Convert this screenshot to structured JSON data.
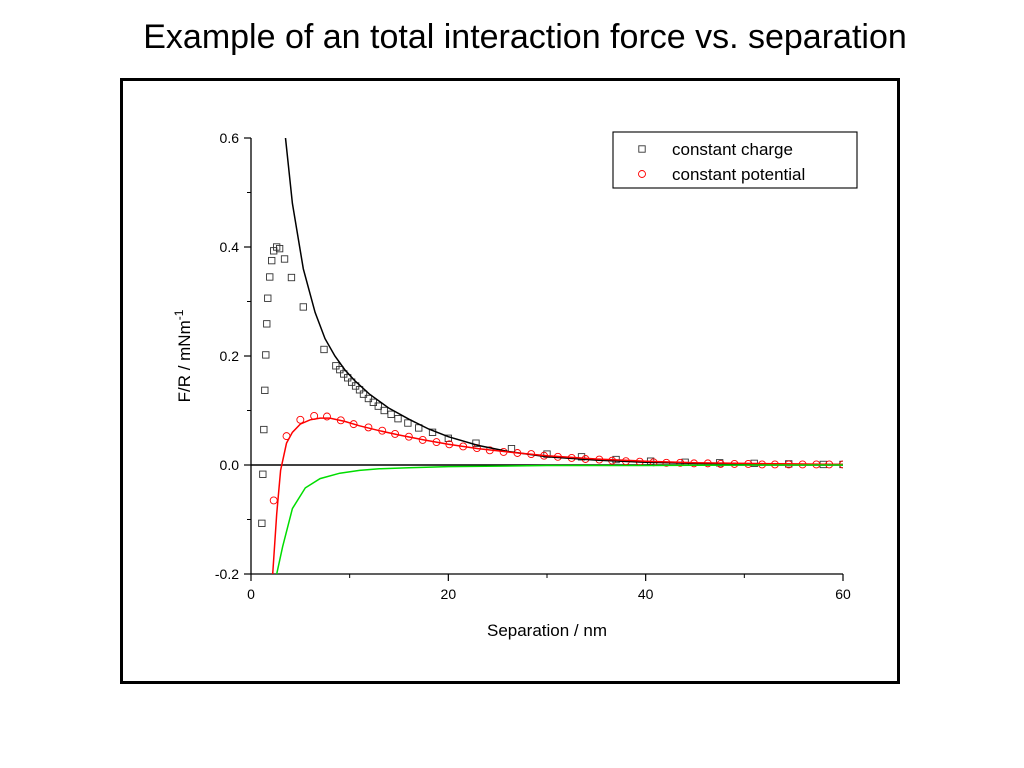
{
  "chart_data": {
    "type": "scatter",
    "title": "Example of an total interaction force vs. separation",
    "xlabel": "Separation / nm",
    "ylabel": "F/R / mNm-1",
    "ylabel_main": "F/R / mNm",
    "ylabel_sup": "-1",
    "xlim": [
      0,
      60
    ],
    "ylim": [
      -0.2,
      0.6
    ],
    "x_ticks": [
      0,
      20,
      40,
      60
    ],
    "x_tick_labels": [
      "0",
      "20",
      "40",
      "60"
    ],
    "y_ticks": [
      -0.2,
      0.0,
      0.2,
      0.4,
      0.6
    ],
    "y_tick_labels": [
      "-0.2",
      "0.0",
      "0.2",
      "0.4",
      "0.6"
    ],
    "grid": false,
    "legend_position": "top-right",
    "zero_line": true,
    "series": [
      {
        "name": "constant charge",
        "kind": "markers",
        "marker": "square",
        "color": "#333333",
        "x": [
          1.1,
          1.2,
          1.3,
          1.4,
          1.5,
          1.6,
          1.7,
          1.9,
          2.1,
          2.3,
          2.6,
          2.9,
          3.4,
          4.1,
          5.3,
          7.4,
          8.6,
          9.0,
          9.4,
          9.8,
          10.2,
          10.6,
          11.0,
          11.4,
          11.9,
          12.4,
          12.9,
          13.5,
          14.2,
          14.9,
          15.9,
          17.0,
          18.4,
          20.0,
          22.8,
          26.4,
          30.0,
          33.5,
          37.0,
          40.5,
          44.0,
          47.5,
          51.0,
          54.5,
          58.0,
          60.0
        ],
        "y": [
          -0.107,
          -0.017,
          0.065,
          0.137,
          0.202,
          0.259,
          0.306,
          0.345,
          0.375,
          0.393,
          0.4,
          0.397,
          0.378,
          0.344,
          0.29,
          0.212,
          0.182,
          0.175,
          0.167,
          0.16,
          0.152,
          0.145,
          0.138,
          0.13,
          0.122,
          0.115,
          0.108,
          0.1,
          0.093,
          0.085,
          0.077,
          0.068,
          0.06,
          0.049,
          0.04,
          0.03,
          0.02,
          0.015,
          0.01,
          0.007,
          0.005,
          0.004,
          0.003,
          0.002,
          0.001,
          0.001
        ]
      },
      {
        "name": "constant potential",
        "kind": "markers",
        "marker": "circle",
        "color": "#ff0000",
        "x": [
          2.3,
          3.6,
          5.0,
          6.4,
          7.7,
          9.1,
          10.4,
          11.9,
          13.3,
          14.6,
          16.0,
          17.4,
          18.8,
          20.1,
          21.5,
          22.9,
          24.2,
          25.6,
          27.0,
          28.4,
          29.7,
          31.1,
          32.5,
          33.9,
          35.3,
          36.6,
          38.0,
          39.4,
          40.8,
          42.1,
          43.5,
          44.9,
          46.3,
          47.6,
          49.0,
          50.4,
          51.8,
          53.1,
          54.5,
          55.9,
          57.3,
          58.6,
          60.0
        ],
        "y": [
          -0.065,
          0.053,
          0.083,
          0.09,
          0.089,
          0.082,
          0.075,
          0.069,
          0.063,
          0.057,
          0.052,
          0.046,
          0.042,
          0.038,
          0.034,
          0.031,
          0.027,
          0.024,
          0.022,
          0.02,
          0.017,
          0.015,
          0.013,
          0.011,
          0.01,
          0.008,
          0.007,
          0.006,
          0.005,
          0.004,
          0.004,
          0.003,
          0.003,
          0.002,
          0.002,
          0.002,
          0.001,
          0.001,
          0.001,
          0.001,
          0.001,
          0.001,
          0.001
        ]
      },
      {
        "kind": "line",
        "color": "#000000",
        "x": [
          3.5,
          4.2,
          5.3,
          6.5,
          7.5,
          8.5,
          9.5,
          10.5,
          12.0,
          14.0,
          16.0,
          18.0,
          20.0,
          23.0,
          26.0,
          30.0,
          35.0,
          40.0,
          45.0,
          50.0,
          55.0,
          60.0
        ],
        "y": [
          0.6,
          0.48,
          0.36,
          0.28,
          0.232,
          0.2,
          0.175,
          0.155,
          0.13,
          0.104,
          0.084,
          0.066,
          0.052,
          0.036,
          0.025,
          0.015,
          0.009,
          0.005,
          0.003,
          0.002,
          0.001,
          0.001
        ]
      },
      {
        "kind": "line",
        "color": "#ff0000",
        "x": [
          2.2,
          2.6,
          3.0,
          3.6,
          4.2,
          5.0,
          6.0,
          7.0,
          8.0,
          9.5,
          11.0,
          13.0,
          15.0,
          17.5,
          20.0,
          23.0,
          26.0,
          30.0,
          35.0,
          40.0,
          45.0,
          50.0,
          55.0,
          60.0
        ],
        "y": [
          -0.2,
          -0.09,
          -0.01,
          0.04,
          0.06,
          0.075,
          0.083,
          0.086,
          0.086,
          0.08,
          0.072,
          0.063,
          0.055,
          0.046,
          0.038,
          0.03,
          0.024,
          0.017,
          0.011,
          0.007,
          0.004,
          0.003,
          0.002,
          0.001
        ]
      },
      {
        "kind": "line",
        "color": "#00dd00",
        "x": [
          2.6,
          3.2,
          4.2,
          5.5,
          7.0,
          9.0,
          11.0,
          13.0,
          16.0,
          20.0,
          25.0,
          30.0,
          40.0,
          50.0,
          60.0
        ],
        "y": [
          -0.2,
          -0.15,
          -0.08,
          -0.042,
          -0.025,
          -0.015,
          -0.01,
          -0.007,
          -0.005,
          -0.003,
          -0.002,
          -0.001,
          -0.001,
          0.0,
          0.0
        ]
      }
    ]
  }
}
